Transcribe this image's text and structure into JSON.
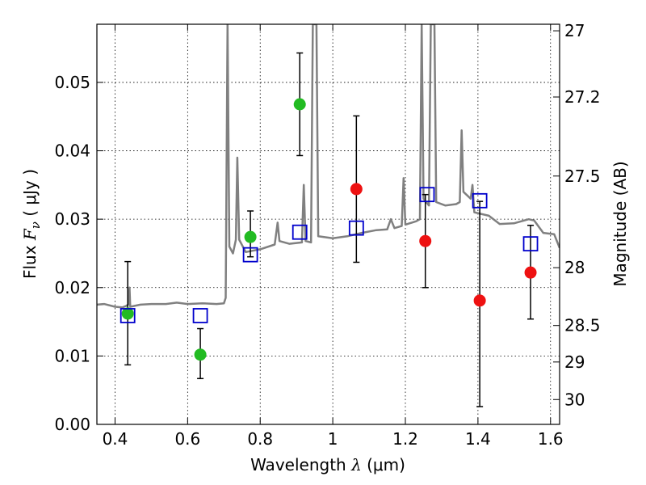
{
  "chart_data": {
    "type": "scatter",
    "xlabel": {
      "prefix": "Wavelength  ",
      "symbol": "λ",
      "suffix": " (μm)"
    },
    "ylabel": {
      "prefix": "Flux  ",
      "symbol": "F",
      "subscript": "ν",
      "suffix": "  ( μJy )"
    },
    "y2label": "Magnitude (AB)",
    "xlim": [
      0.35,
      1.625
    ],
    "ylim": [
      0.0,
      0.0585
    ],
    "grid": true,
    "x_ticks": [
      {
        "value": 0.4,
        "label": "0.4"
      },
      {
        "value": 0.6,
        "label": "0.6"
      },
      {
        "value": 0.8,
        "label": "0.8"
      },
      {
        "value": 1.0,
        "label": "1"
      },
      {
        "value": 1.2,
        "label": "1.2"
      },
      {
        "value": 1.4,
        "label": "1.4"
      },
      {
        "value": 1.6,
        "label": "1.6"
      }
    ],
    "y_ticks": [
      {
        "value": 0.0,
        "label": "0.00"
      },
      {
        "value": 0.01,
        "label": "0.01"
      },
      {
        "value": 0.02,
        "label": "0.02"
      },
      {
        "value": 0.03,
        "label": "0.03"
      },
      {
        "value": 0.04,
        "label": "0.04"
      },
      {
        "value": 0.05,
        "label": "0.05"
      }
    ],
    "mag_ticks": [
      {
        "mag": 27,
        "label": "27"
      },
      {
        "mag": 27.2,
        "label": "27.2"
      },
      {
        "mag": 27.5,
        "label": "27.5"
      },
      {
        "mag": 28,
        "label": "28"
      },
      {
        "mag": 28.5,
        "label": "28.5"
      },
      {
        "mag": 29,
        "label": "29"
      },
      {
        "mag": 30,
        "label": "30"
      }
    ],
    "colors": {
      "green": "#22bb22",
      "red": "#ee1111",
      "model": "#808080",
      "model_box": "#0000cc",
      "error": "#000000"
    },
    "series": [
      {
        "kind": "observed-green",
        "points": [
          {
            "x": 0.435,
            "y": 0.0162,
            "ylo": 0.0087,
            "yhi": 0.0238
          },
          {
            "x": 0.635,
            "y": 0.0102,
            "ylo": 0.0067,
            "yhi": 0.014
          },
          {
            "x": 0.773,
            "y": 0.0274,
            "ylo": 0.0245,
            "yhi": 0.0312
          },
          {
            "x": 0.909,
            "y": 0.0468,
            "ylo": 0.0393,
            "yhi": 0.0543
          }
        ]
      },
      {
        "kind": "observed-red",
        "points": [
          {
            "x": 1.065,
            "y": 0.0344,
            "ylo": 0.0237,
            "yhi": 0.0451
          },
          {
            "x": 1.255,
            "y": 0.0268,
            "ylo": 0.02,
            "yhi": 0.0336
          },
          {
            "x": 1.405,
            "y": 0.0181,
            "ylo": 0.0026,
            "yhi": 0.0326
          },
          {
            "x": 1.545,
            "y": 0.0222,
            "ylo": 0.0154,
            "yhi": 0.0291
          }
        ]
      },
      {
        "kind": "model-photometry",
        "points": [
          {
            "x": 0.435,
            "y": 0.0159
          },
          {
            "x": 0.635,
            "y": 0.0159
          },
          {
            "x": 0.773,
            "y": 0.0248
          },
          {
            "x": 0.909,
            "y": 0.0281
          },
          {
            "x": 1.065,
            "y": 0.0287
          },
          {
            "x": 1.26,
            "y": 0.0336
          },
          {
            "x": 1.405,
            "y": 0.0327
          },
          {
            "x": 1.545,
            "y": 0.0264
          }
        ]
      }
    ],
    "model_spectrum": [
      [
        0.35,
        0.0175
      ],
      [
        0.37,
        0.0176
      ],
      [
        0.4,
        0.0172
      ],
      [
        0.42,
        0.0171
      ],
      [
        0.43,
        0.0173
      ],
      [
        0.438,
        0.0176
      ],
      [
        0.44,
        0.02
      ],
      [
        0.442,
        0.0172
      ],
      [
        0.47,
        0.0175
      ],
      [
        0.5,
        0.0176
      ],
      [
        0.54,
        0.0176
      ],
      [
        0.57,
        0.0178
      ],
      [
        0.6,
        0.0176
      ],
      [
        0.64,
        0.0177
      ],
      [
        0.68,
        0.0176
      ],
      [
        0.7,
        0.0177
      ],
      [
        0.705,
        0.0185
      ],
      [
        0.71,
        0.0585
      ],
      [
        0.715,
        0.026
      ],
      [
        0.725,
        0.025
      ],
      [
        0.733,
        0.027
      ],
      [
        0.737,
        0.039
      ],
      [
        0.742,
        0.027
      ],
      [
        0.76,
        0.0252
      ],
      [
        0.8,
        0.0256
      ],
      [
        0.84,
        0.0263
      ],
      [
        0.848,
        0.0295
      ],
      [
        0.853,
        0.0268
      ],
      [
        0.88,
        0.0264
      ],
      [
        0.915,
        0.0266
      ],
      [
        0.92,
        0.035
      ],
      [
        0.925,
        0.0268
      ],
      [
        0.94,
        0.0266
      ],
      [
        0.945,
        0.0585
      ],
      [
        0.955,
        0.0585
      ],
      [
        0.96,
        0.0275
      ],
      [
        1.0,
        0.0272
      ],
      [
        1.04,
        0.0275
      ],
      [
        1.08,
        0.028
      ],
      [
        1.12,
        0.0284
      ],
      [
        1.15,
        0.0285
      ],
      [
        1.16,
        0.03
      ],
      [
        1.17,
        0.0287
      ],
      [
        1.19,
        0.029
      ],
      [
        1.195,
        0.036
      ],
      [
        1.2,
        0.0292
      ],
      [
        1.23,
        0.0297
      ],
      [
        1.24,
        0.03
      ],
      [
        1.245,
        0.0585
      ],
      [
        1.25,
        0.033
      ],
      [
        1.265,
        0.032
      ],
      [
        1.27,
        0.0585
      ],
      [
        1.28,
        0.0585
      ],
      [
        1.285,
        0.0325
      ],
      [
        1.31,
        0.032
      ],
      [
        1.34,
        0.0322
      ],
      [
        1.35,
        0.0325
      ],
      [
        1.355,
        0.043
      ],
      [
        1.36,
        0.034
      ],
      [
        1.38,
        0.033
      ],
      [
        1.385,
        0.035
      ],
      [
        1.39,
        0.031
      ],
      [
        1.43,
        0.0305
      ],
      [
        1.46,
        0.0293
      ],
      [
        1.5,
        0.0294
      ],
      [
        1.54,
        0.03
      ],
      [
        1.555,
        0.0298
      ],
      [
        1.58,
        0.028
      ],
      [
        1.61,
        0.0278
      ],
      [
        1.625,
        0.0258
      ]
    ]
  }
}
